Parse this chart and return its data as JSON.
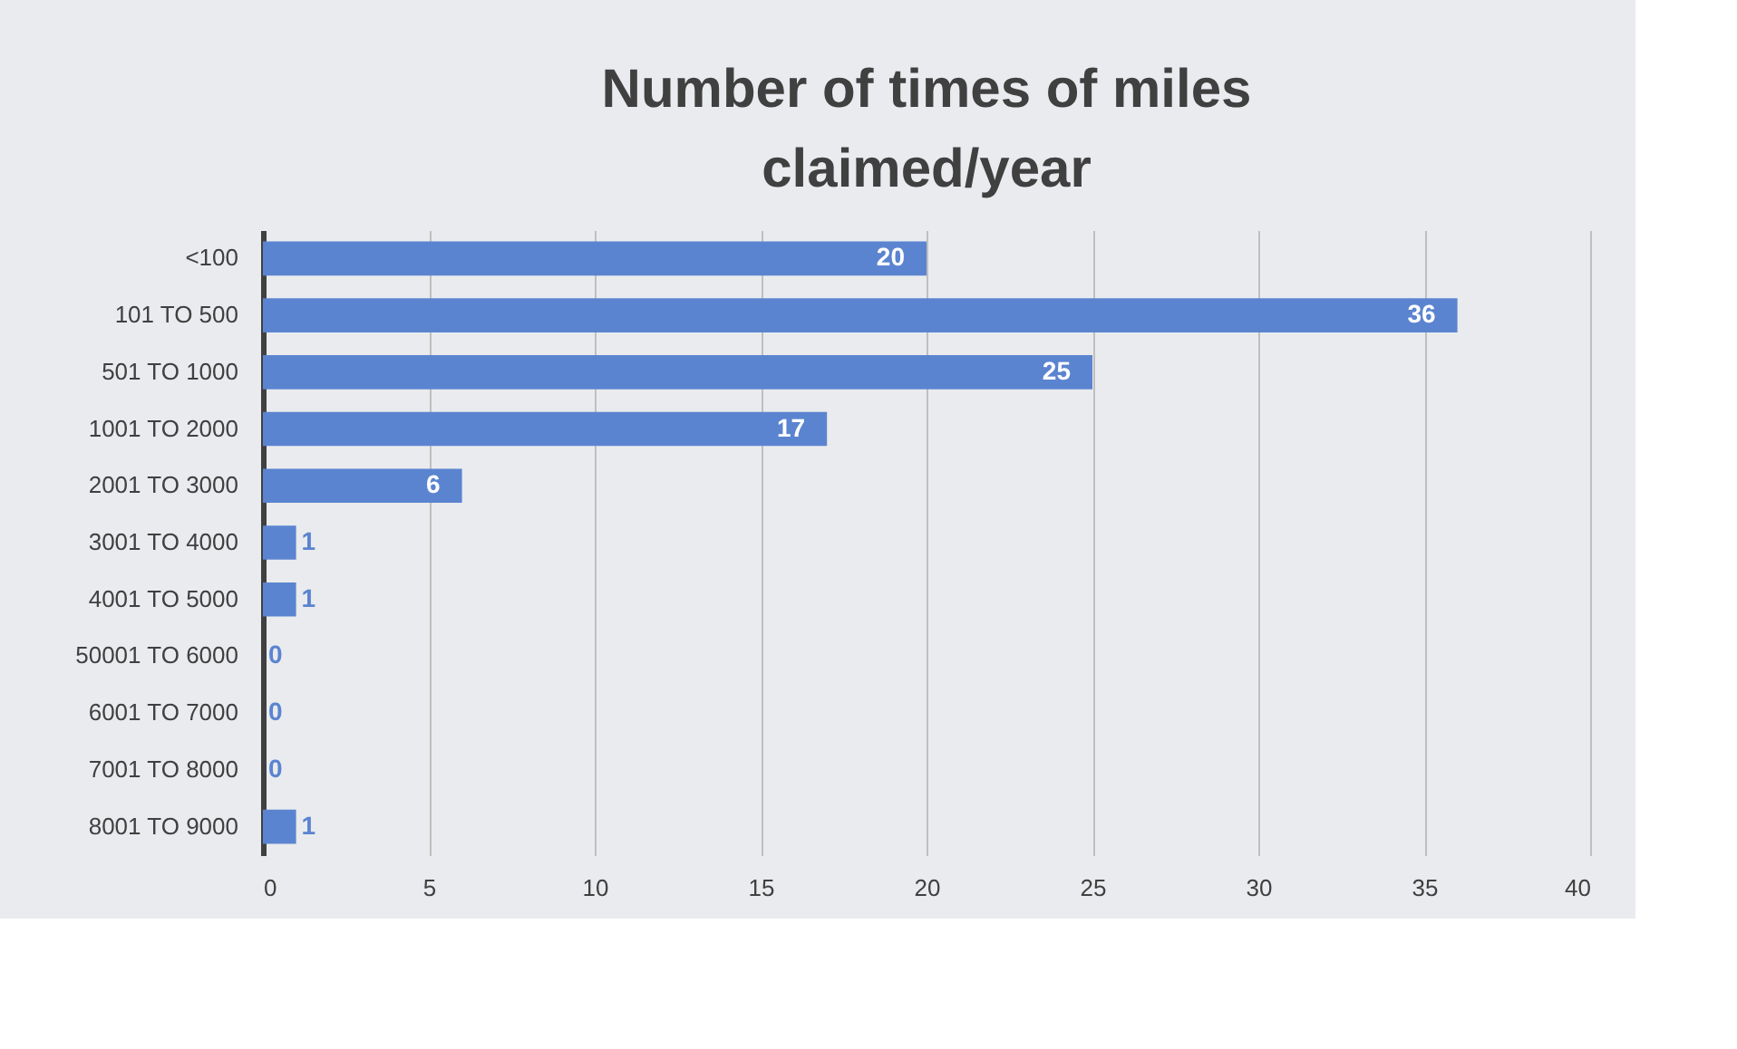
{
  "chart_data": {
    "type": "bar",
    "orientation": "horizontal",
    "title": "Number of times of miles claimed/year",
    "categories": [
      "<100",
      "101 TO 500",
      "501 TO 1000",
      "1001 TO 2000",
      "2001 TO 3000",
      "3001 TO 4000",
      "4001 TO 5000",
      "50001 TO 6000",
      "6001 TO 7000",
      "7001 TO 8000",
      "8001 TO 9000"
    ],
    "values": [
      20,
      36,
      25,
      17,
      6,
      1,
      1,
      0,
      0,
      0,
      1
    ],
    "color": "#5b84d0",
    "xlim": [
      0,
      40
    ],
    "xticks": [
      0,
      5,
      10,
      15,
      20,
      25,
      30,
      35,
      40
    ],
    "grid": "x",
    "data_labels": true
  }
}
